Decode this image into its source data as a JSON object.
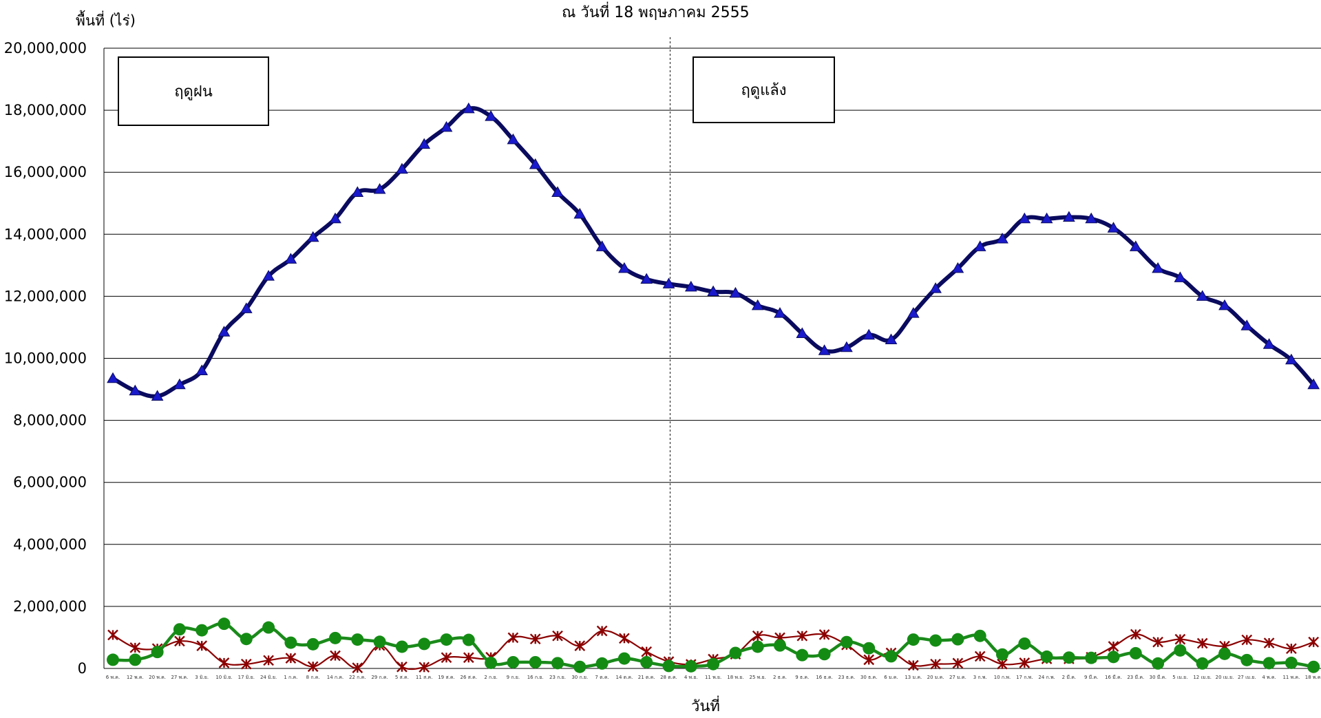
{
  "chart_data": {
    "type": "line",
    "title": "ณ  วันที่ 18 พฤษภาคม 2555",
    "xlabel": "วันที่",
    "ylabel": "พื้นที่ (ไร่)",
    "ylim": [
      0,
      20000000
    ],
    "yticks": [
      0,
      2000000,
      4000000,
      6000000,
      8000000,
      10000000,
      12000000,
      14000000,
      16000000,
      18000000,
      20000000
    ],
    "ytick_labels": [
      "0",
      "2,000,000",
      "4,000,000",
      "6,000,000",
      "8,000,000",
      "10,000,000",
      "12,000,000",
      "14,000,000",
      "16,000,000",
      "18,000,000",
      "20,000,000"
    ],
    "grid": true,
    "legend": "none",
    "annotations": [
      "ฤดูฝน",
      "ฤดูแล้ง"
    ],
    "divider_after_category": "28 ต.ค.",
    "categories": [
      "6 พ.ค.",
      "12 พ.ค.",
      "20 พ.ค.",
      "27 พ.ค.",
      "3 มิ.ย.",
      "10 มิ.ย.",
      "17 มิ.ย.",
      "24 มิ.ย.",
      "1 ก.ค.",
      "8 ก.ค.",
      "14 ก.ค.",
      "22 ก.ค.",
      "29 ก.ค.",
      "5 ส.ค.",
      "11 ส.ค.",
      "19 ส.ค.",
      "26 ส.ค.",
      "2 ก.ย.",
      "9 ก.ย.",
      "16 ก.ย.",
      "23 ก.ย.",
      "30 ก.ย.",
      "7 ต.ค.",
      "14 ต.ค.",
      "21 ต.ค.",
      "28 ต.ค.",
      "4 พ.ย.",
      "11 พ.ย.",
      "18 พ.ย.",
      "25 พ.ย.",
      "2 ธ.ค.",
      "9 ธ.ค.",
      "16 ธ.ค.",
      "23 ธ.ค.",
      "30 ธ.ค.",
      "6 ม.ค.",
      "13 ม.ค.",
      "20 ม.ค.",
      "27 ม.ค.",
      "3 ก.พ.",
      "10 ก.พ.",
      "17 ก.พ.",
      "24 ก.พ.",
      "2 มี.ค.",
      "9 มี.ค.",
      "16 มี.ค.",
      "23 มี.ค.",
      "30 มี.ค.",
      "5 เม.ย.",
      "12 เม.ย.",
      "20 เม.ย.",
      "27 เม.ย.",
      "4 พ.ค.",
      "11 พ.ค.",
      "18 พ.ค."
    ],
    "series": [
      {
        "color": "#0a0a5e",
        "marker": "triangle",
        "marker_color": "#1a1acc",
        "values": [
          9350000,
          8950000,
          8780000,
          9150000,
          9600000,
          10850000,
          11600000,
          12650000,
          13200000,
          13900000,
          14500000,
          15350000,
          15450000,
          16100000,
          16900000,
          17450000,
          18050000,
          17800000,
          17050000,
          16250000,
          15350000,
          14650000,
          13600000,
          12900000,
          12550000,
          12400000,
          12300000,
          12150000,
          12100000,
          11700000,
          11450000,
          10800000,
          10250000,
          10350000,
          10750000,
          10600000,
          11450000,
          12250000,
          12900000,
          13600000,
          13850000,
          14500000,
          14500000,
          14550000,
          14500000,
          14200000,
          13600000,
          12900000,
          12600000,
          12000000,
          11700000,
          11050000,
          10450000,
          9950000,
          9150000
        ]
      },
      {
        "color": "#1a8a1a",
        "marker": "circle",
        "marker_color": "#148c14",
        "values": [
          280000,
          280000,
          530000,
          1260000,
          1230000,
          1440000,
          950000,
          1320000,
          830000,
          780000,
          980000,
          930000,
          860000,
          700000,
          790000,
          930000,
          920000,
          180000,
          200000,
          200000,
          170000,
          50000,
          160000,
          320000,
          200000,
          80000,
          70000,
          140000,
          500000,
          700000,
          740000,
          430000,
          460000,
          850000,
          650000,
          390000,
          930000,
          900000,
          940000,
          1050000,
          450000,
          800000,
          380000,
          350000,
          340000,
          370000,
          490000,
          160000,
          580000,
          160000,
          470000,
          270000,
          170000,
          180000,
          50000
        ]
      },
      {
        "color": "#8b0000",
        "marker": "asterisk",
        "marker_color": "#8b0000",
        "values": [
          1080000,
          670000,
          640000,
          880000,
          730000,
          180000,
          140000,
          260000,
          330000,
          60000,
          410000,
          20000,
          740000,
          50000,
          40000,
          350000,
          350000,
          360000,
          990000,
          950000,
          1050000,
          730000,
          1210000,
          970000,
          540000,
          220000,
          130000,
          300000,
          460000,
          1050000,
          990000,
          1050000,
          1090000,
          760000,
          280000,
          500000,
          100000,
          140000,
          170000,
          390000,
          140000,
          180000,
          310000,
          310000,
          360000,
          710000,
          1100000,
          850000,
          940000,
          810000,
          720000,
          920000,
          820000,
          640000,
          850000
        ]
      }
    ]
  },
  "boxes": {
    "rainy": "ฤดูฝน",
    "dry": "ฤดูแล้ง"
  }
}
